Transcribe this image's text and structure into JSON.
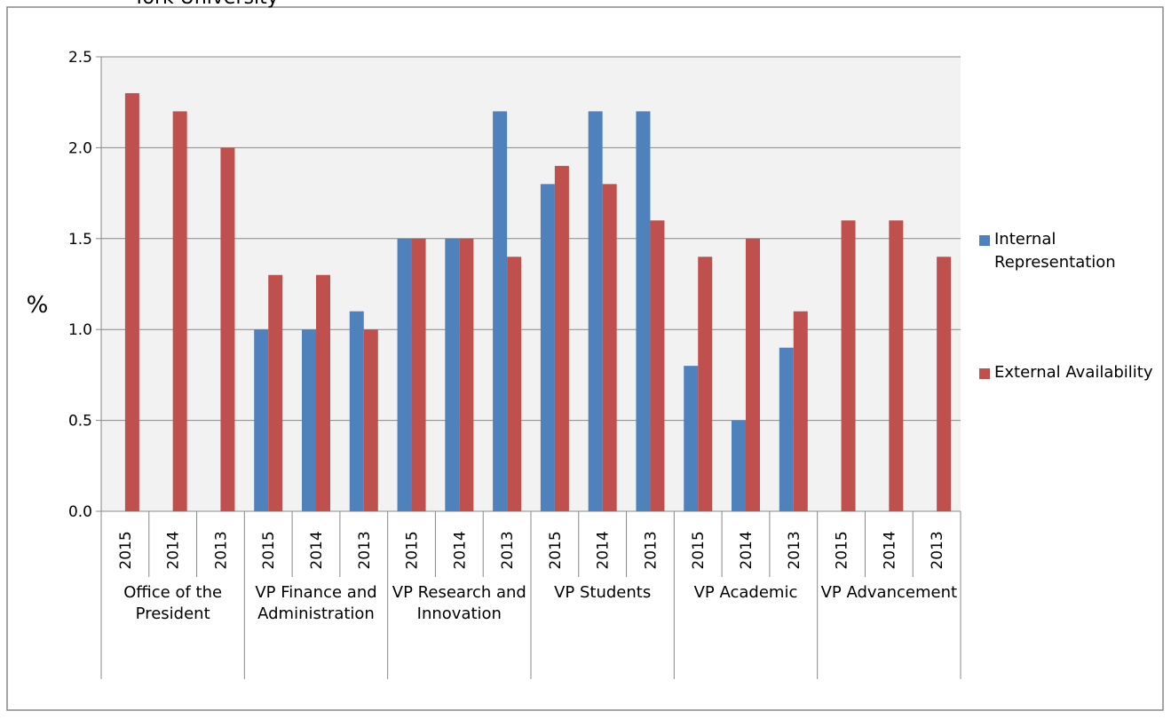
{
  "chart_data": {
    "type": "bar",
    "title": "York University",
    "y_label": "%",
    "categories": [
      "2015",
      "2014",
      "2013",
      "2015",
      "2014",
      "2013",
      "2015",
      "2014",
      "2013",
      "2015",
      "2014",
      "2013",
      "2015",
      "2014",
      "2013",
      "2015",
      "2014",
      "2013"
    ],
    "groups": [
      "Office of the President",
      "VP Finance and Administration",
      "VP Research and Innovation",
      "VP Students",
      "VP Academic",
      "VP Advancement"
    ],
    "series": [
      {
        "name": "Internal Representation",
        "color": "#4f81bd",
        "values": [
          null,
          null,
          null,
          1.0,
          1.0,
          1.1,
          1.5,
          1.5,
          2.2,
          1.8,
          2.2,
          2.2,
          0.8,
          0.5,
          0.9,
          null,
          null,
          null
        ]
      },
      {
        "name": "External Availability",
        "color": "#c0504d",
        "values": [
          2.3,
          2.2,
          2.0,
          1.3,
          1.3,
          1.0,
          1.5,
          1.5,
          1.4,
          1.9,
          1.8,
          1.6,
          1.4,
          1.5,
          1.1,
          1.6,
          1.6,
          1.4
        ]
      }
    ],
    "ylim": [
      0,
      2.5
    ],
    "yticks": [
      {
        "value": 0,
        "label": "0.0"
      },
      {
        "value": 0.5,
        "label": "0.5"
      },
      {
        "value": 1,
        "label": "1.0"
      },
      {
        "value": 1.5,
        "label": "1.5"
      },
      {
        "value": 2,
        "label": "2.0"
      },
      {
        "value": 2.5,
        "label": "2.5"
      }
    ],
    "grid": true,
    "legend": "right"
  }
}
